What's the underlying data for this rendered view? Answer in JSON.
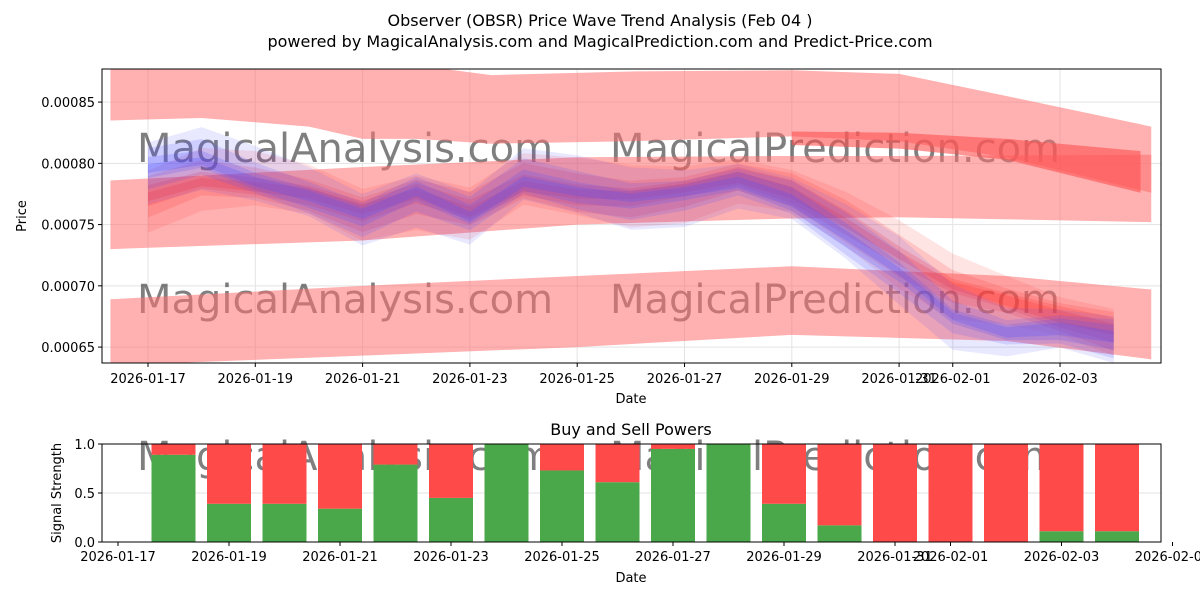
{
  "chart_data": [
    {
      "type": "area",
      "title": "Observer (OBSR) Price Wave Trend Analysis (Feb 04 )",
      "subtitle": "powered by MagicalAnalysis.com and MagicalPrediction.com and Predict-Price.com",
      "xlabel": "Date",
      "ylabel": "Price",
      "ylim": [
        0.000637,
        0.000877
      ],
      "xlim_days_from_2026_01_17": [
        -0.9,
        19.2
      ],
      "grid": true,
      "yticks": [
        "0.00065",
        "0.00070",
        "0.00075",
        "0.00080",
        "0.00085"
      ],
      "ytick_values": [
        0.00065,
        0.0007,
        0.00075,
        0.0008,
        0.00085
      ],
      "xticks": [
        {
          "label": "2026-01-17",
          "day": 0
        },
        {
          "label": "2026-01-19",
          "day": 2
        },
        {
          "label": "2026-01-21",
          "day": 4
        },
        {
          "label": "2026-01-23",
          "day": 6
        },
        {
          "label": "2026-01-25",
          "day": 8
        },
        {
          "label": "2026-01-27",
          "day": 10
        },
        {
          "label": "2026-01-29",
          "day": 12
        },
        {
          "label": "2026-01-31",
          "day": 14
        },
        {
          "label": "2026-02-01",
          "day": 15
        },
        {
          "label": "2026-02-03",
          "day": 17
        }
      ],
      "bands": [
        {
          "name": "upper-wave",
          "days": [
            -0.7,
            1,
            3,
            4,
            5,
            6.4,
            9,
            12,
            14,
            16,
            18.7
          ],
          "lower": [
            0.000835,
            0.000837,
            0.00083,
            0.00082,
            0.00082,
            0.000816,
            0.000818,
            0.000822,
            0.000818,
            0.000805,
            0.000776
          ],
          "upper": [
            0.00088,
            0.00088,
            0.00088,
            0.00088,
            0.00088,
            0.000872,
            0.000875,
            0.000876,
            0.000873,
            0.000855,
            0.00083
          ]
        },
        {
          "name": "middle-wave",
          "days": [
            -0.7,
            4,
            8,
            12,
            14,
            18.7
          ],
          "lower": [
            0.00073,
            0.000737,
            0.00075,
            0.000755,
            0.000756,
            0.000752
          ],
          "upper": [
            0.000786,
            0.000797,
            0.000805,
            0.000806,
            0.000806,
            0.000807
          ]
        },
        {
          "name": "lower-wave",
          "days": [
            -0.7,
            4,
            8,
            12,
            16,
            18.7
          ],
          "lower": [
            0.000635,
            0.000643,
            0.00065,
            0.00066,
            0.000655,
            0.00064
          ],
          "upper": [
            0.000689,
            0.0007,
            0.000708,
            0.000716,
            0.000708,
            0.000697
          ]
        },
        {
          "name": "trend-wave",
          "days": [
            12,
            14,
            16,
            18.5
          ],
          "lower": [
            0.000815,
            0.000812,
            0.000803,
            0.000776
          ],
          "upper": [
            0.000826,
            0.000825,
            0.00082,
            0.00081
          ]
        }
      ],
      "series": [
        {
          "name": "price-red",
          "color": "#ff3030",
          "days": [
            0,
            1,
            2,
            3,
            4,
            5,
            6,
            7,
            8,
            9,
            10,
            11,
            12,
            13,
            14,
            15,
            16,
            17,
            18
          ],
          "values": [
            0.000772,
            0.000785,
            0.000782,
            0.000776,
            0.000762,
            0.000774,
            0.00076,
            0.000782,
            0.000776,
            0.000774,
            0.000779,
            0.000788,
            0.000776,
            0.000752,
            0.000725,
            0.0007,
            0.000688,
            0.000675,
            0.000664
          ]
        },
        {
          "name": "price-blue",
          "color": "#5050ff",
          "days": [
            0,
            1,
            2,
            3,
            4,
            5,
            6,
            7,
            8,
            9,
            10,
            11,
            12,
            13,
            14,
            15,
            16,
            17,
            18
          ],
          "values": [
            0.000795,
            0.000802,
            0.000786,
            0.000774,
            0.000758,
            0.000776,
            0.000756,
            0.000786,
            0.000778,
            0.000772,
            0.000776,
            0.000784,
            0.00077,
            0.000742,
            0.000712,
            0.000675,
            0.000662,
            0.000665,
            0.000658
          ]
        }
      ]
    },
    {
      "type": "bar",
      "title": "Buy and Sell Powers",
      "xlabel": "Date",
      "ylabel": "Signal Strength",
      "ylim": [
        0,
        1
      ],
      "yticks": [
        "0.0",
        "0.5",
        "1.0"
      ],
      "ytick_values": [
        0,
        0.5,
        1
      ],
      "xticks": [
        {
          "label": "2026-01-17",
          "day": 0
        },
        {
          "label": "2026-01-19",
          "day": 2
        },
        {
          "label": "2026-01-21",
          "day": 4
        },
        {
          "label": "2026-01-23",
          "day": 6
        },
        {
          "label": "2026-01-25",
          "day": 8
        },
        {
          "label": "2026-01-27",
          "day": 10
        },
        {
          "label": "2026-01-29",
          "day": 12
        },
        {
          "label": "2026-01-31",
          "day": 14
        },
        {
          "label": "2026-02-01",
          "day": 15
        },
        {
          "label": "2026-02-03",
          "day": 17
        },
        {
          "label": "2026-02-05",
          "day": 19
        }
      ],
      "categories": [
        "2026-01-18",
        "2026-01-19",
        "2026-01-20",
        "2026-01-21",
        "2026-01-22",
        "2026-01-23",
        "2026-01-24",
        "2026-01-25",
        "2026-01-26",
        "2026-01-27",
        "2026-01-28",
        "2026-01-29",
        "2026-01-30",
        "2026-01-31",
        "2026-02-01",
        "2026-02-02",
        "2026-02-03",
        "2026-02-04"
      ],
      "category_days": [
        1,
        2,
        3,
        4,
        5,
        6,
        7,
        8,
        9,
        10,
        11,
        12,
        13,
        14,
        15,
        16,
        17,
        18
      ],
      "series": [
        {
          "name": "Buy",
          "color": "#4aa84a",
          "values": [
            0.89,
            0.39,
            0.39,
            0.34,
            0.79,
            0.45,
            1.0,
            0.73,
            0.61,
            0.95,
            1.0,
            0.39,
            0.17,
            0,
            0,
            0,
            0.11,
            0.11
          ]
        },
        {
          "name": "Sell",
          "color": "#ff4a4a",
          "values": [
            0.11,
            0.61,
            0.61,
            0.66,
            0.21,
            0.55,
            0.0,
            0.27,
            0.39,
            0.05,
            0.0,
            0.61,
            0.83,
            1,
            1,
            1,
            0.89,
            0.89
          ]
        }
      ]
    }
  ],
  "watermarks": [
    "MagicalAnalysis.com",
    "MagicalPrediction.com"
  ]
}
